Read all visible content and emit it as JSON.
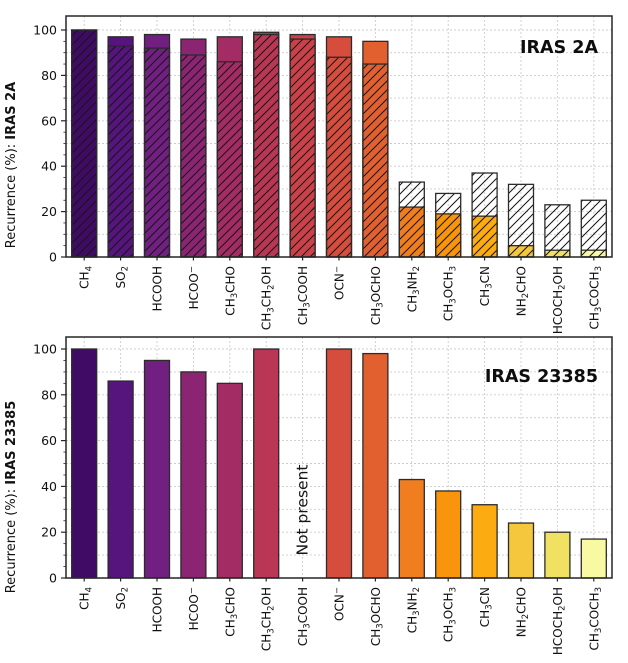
{
  "figure": {
    "background": "#ffffff",
    "text_color": "#111111",
    "grid_color": "#cccccc",
    "frame_color": "#262626",
    "bar_edge_color": "#2b2b2b"
  },
  "chart_data": [
    {
      "type": "bar",
      "panel": "top",
      "title": "IRAS 2A",
      "ylabel_prefix": "Recurrence (%): ",
      "ylabel_bold": "IRAS 2A",
      "ylabel_full": "Recurrence (%): IRAS 2A",
      "ylim": [
        0,
        106
      ],
      "yticks": [
        0,
        20,
        40,
        60,
        80,
        100
      ],
      "grid": "both-dashed-every-10",
      "categories": [
        "CH4",
        "SO2",
        "HCOOH",
        "HCOO-",
        "CH3CHO",
        "CH3CH2OH",
        "CH3COOH",
        "OCN-",
        "CH3OCHO",
        "CH3NH2",
        "CH3OCH3",
        "CH3CN",
        "NH2CHO",
        "HCOCH2OH",
        "CH3COCH3"
      ],
      "series": [
        {
          "name": "solid",
          "style": "filled",
          "values": [
            100,
            97,
            98,
            96,
            97,
            99,
            98,
            97,
            95,
            22,
            19,
            18,
            5,
            3,
            3
          ]
        },
        {
          "name": "hatched",
          "style": "hatch-overlay",
          "values": [
            100,
            93,
            92,
            89,
            86,
            98,
            96,
            88,
            85,
            33,
            28,
            37,
            32,
            23,
            25
          ]
        }
      ]
    },
    {
      "type": "bar",
      "panel": "bottom",
      "title": "IRAS 23385",
      "ylabel_prefix": "Recurrence (%): ",
      "ylabel_bold": "IRAS 23385",
      "ylabel_full": "Recurrence (%): IRAS 23385",
      "ylim": [
        0,
        106
      ],
      "yticks": [
        0,
        20,
        40,
        60,
        80,
        100
      ],
      "grid": "both-dashed-every-10",
      "categories": [
        "CH4",
        "SO2",
        "HCOOH",
        "HCOO-",
        "CH3CHO",
        "CH3CH2OH",
        "CH3COOH",
        "OCN-",
        "CH3OCHO",
        "CH3NH2",
        "CH3OCH3",
        "CH3CN",
        "NH2CHO",
        "HCOCH2OH",
        "CH3COCH3"
      ],
      "series": [
        {
          "name": "solid",
          "style": "filled",
          "values": [
            100,
            86,
            95,
            90,
            85,
            100,
            null,
            100,
            98,
            43,
            38,
            32,
            24,
            20,
            17
          ]
        }
      ],
      "annotation": {
        "text": "Not present",
        "category": "CH3COOH",
        "category_index": 6,
        "rotation": 90
      }
    }
  ],
  "bar_colors": [
    "#400b64",
    "#56157d",
    "#711f81",
    "#8b2472",
    "#a22c63",
    "#ba3655",
    "#cb4149",
    "#d64d3d",
    "#e2602f",
    "#f07d1e",
    "#f9940d",
    "#fcab10",
    "#f5c73c",
    "#f0e163",
    "#f9f9a3"
  ],
  "label_segments": [
    [
      [
        "CH",
        0
      ],
      [
        "4",
        -1
      ]
    ],
    [
      [
        "SO",
        0
      ],
      [
        "2",
        -1
      ]
    ],
    [
      [
        "HCOOH",
        0
      ]
    ],
    [
      [
        "HCOO",
        0
      ],
      [
        "−",
        1
      ]
    ],
    [
      [
        "CH",
        0
      ],
      [
        "3",
        -1
      ],
      [
        "CHO",
        0
      ]
    ],
    [
      [
        "CH",
        0
      ],
      [
        "3",
        -1
      ],
      [
        "CH",
        0
      ],
      [
        "2",
        -1
      ],
      [
        "OH",
        0
      ]
    ],
    [
      [
        "CH",
        0
      ],
      [
        "3",
        -1
      ],
      [
        "COOH",
        0
      ]
    ],
    [
      [
        "OCN",
        0
      ],
      [
        "−",
        1
      ]
    ],
    [
      [
        "CH",
        0
      ],
      [
        "3",
        -1
      ],
      [
        "OCHO",
        0
      ]
    ],
    [
      [
        "CH",
        0
      ],
      [
        "3",
        -1
      ],
      [
        "NH",
        0
      ],
      [
        "2",
        -1
      ]
    ],
    [
      [
        "CH",
        0
      ],
      [
        "3",
        -1
      ],
      [
        "OCH",
        0
      ],
      [
        "3",
        -1
      ]
    ],
    [
      [
        "CH",
        0
      ],
      [
        "3",
        -1
      ],
      [
        "CN",
        0
      ]
    ],
    [
      [
        "NH",
        0
      ],
      [
        "2",
        -1
      ],
      [
        "CHO",
        0
      ]
    ],
    [
      [
        "HCOCH",
        0
      ],
      [
        "2",
        -1
      ],
      [
        "OH",
        0
      ]
    ],
    [
      [
        "CH",
        0
      ],
      [
        "3",
        -1
      ],
      [
        "COCH",
        0
      ],
      [
        "3",
        -1
      ]
    ]
  ]
}
